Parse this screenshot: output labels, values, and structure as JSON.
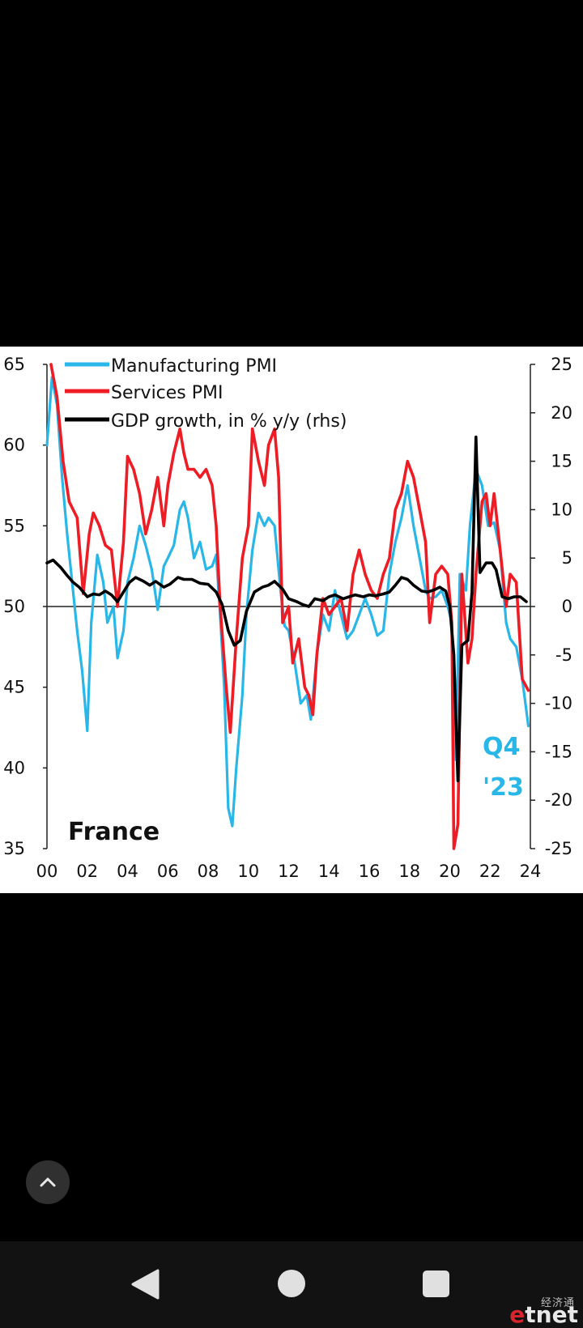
{
  "chart_data": {
    "type": "line",
    "country_label": "France",
    "annotation": {
      "line1": "Q4",
      "line2": "'23",
      "color": "#29b6e8"
    },
    "x_ticks": [
      "00",
      "02",
      "04",
      "06",
      "08",
      "10",
      "12",
      "14",
      "16",
      "18",
      "20",
      "22",
      "24"
    ],
    "xlim": [
      2000,
      2024
    ],
    "y_left": {
      "ticks": [
        "65",
        "60",
        "55",
        "50",
        "45",
        "40",
        "35"
      ],
      "ylim": [
        35,
        65
      ]
    },
    "y_right": {
      "ticks": [
        "25",
        "20",
        "15",
        "10",
        "5",
        "0",
        "-5",
        "-10",
        "-15",
        "-20",
        "-25"
      ],
      "ylim": [
        -25,
        25
      ]
    },
    "legend_placement": "top-left",
    "grid": false,
    "series": [
      {
        "name": "Manufacturing PMI",
        "axis": "left",
        "color": "#29b6e8",
        "points": [
          [
            2000.0,
            60
          ],
          [
            2000.25,
            64.2
          ],
          [
            2000.5,
            62.5
          ],
          [
            2000.75,
            58
          ],
          [
            2001.0,
            54.5
          ],
          [
            2001.25,
            51.5
          ],
          [
            2001.5,
            48.5
          ],
          [
            2001.75,
            46
          ],
          [
            2002.0,
            42.3
          ],
          [
            2002.2,
            49
          ],
          [
            2002.5,
            53.2
          ],
          [
            2002.8,
            51.5
          ],
          [
            2003.0,
            49
          ],
          [
            2003.3,
            50
          ],
          [
            2003.5,
            46.8
          ],
          [
            2003.8,
            48.5
          ],
          [
            2004.0,
            51.5
          ],
          [
            2004.3,
            53
          ],
          [
            2004.6,
            55
          ],
          [
            2004.9,
            53.8
          ],
          [
            2005.2,
            52.3
          ],
          [
            2005.5,
            49.8
          ],
          [
            2005.8,
            52.5
          ],
          [
            2006.0,
            53
          ],
          [
            2006.3,
            53.8
          ],
          [
            2006.6,
            56
          ],
          [
            2006.8,
            56.5
          ],
          [
            2007.0,
            55.5
          ],
          [
            2007.3,
            53
          ],
          [
            2007.6,
            54
          ],
          [
            2007.9,
            52.3
          ],
          [
            2008.2,
            52.5
          ],
          [
            2008.4,
            53.2
          ],
          [
            2008.6,
            49.5
          ],
          [
            2008.8,
            45
          ],
          [
            2009.0,
            37.5
          ],
          [
            2009.2,
            36.4
          ],
          [
            2009.4,
            40
          ],
          [
            2009.7,
            44.5
          ],
          [
            2009.9,
            49.5
          ],
          [
            2010.2,
            53.5
          ],
          [
            2010.5,
            55.8
          ],
          [
            2010.8,
            55
          ],
          [
            2011.0,
            55.5
          ],
          [
            2011.3,
            55
          ],
          [
            2011.6,
            51
          ],
          [
            2011.8,
            48.8
          ],
          [
            2012.0,
            48.5
          ],
          [
            2012.3,
            46.5
          ],
          [
            2012.6,
            44
          ],
          [
            2012.9,
            44.5
          ],
          [
            2013.1,
            43
          ],
          [
            2013.4,
            47
          ],
          [
            2013.7,
            49.5
          ],
          [
            2014.0,
            48.5
          ],
          [
            2014.3,
            51
          ],
          [
            2014.6,
            49.5
          ],
          [
            2014.9,
            48
          ],
          [
            2015.2,
            48.5
          ],
          [
            2015.5,
            49.5
          ],
          [
            2015.8,
            50.5
          ],
          [
            2016.1,
            49.5
          ],
          [
            2016.4,
            48.2
          ],
          [
            2016.7,
            48.5
          ],
          [
            2017.0,
            52
          ],
          [
            2017.3,
            54
          ],
          [
            2017.6,
            55.5
          ],
          [
            2017.9,
            57.5
          ],
          [
            2018.2,
            55
          ],
          [
            2018.5,
            53
          ],
          [
            2018.8,
            51
          ],
          [
            2019.0,
            50.5
          ],
          [
            2019.3,
            50.6
          ],
          [
            2019.6,
            51
          ],
          [
            2019.9,
            50
          ],
          [
            2020.1,
            49
          ],
          [
            2020.2,
            43
          ],
          [
            2020.3,
            40.5
          ],
          [
            2020.5,
            52
          ],
          [
            2020.8,
            51
          ],
          [
            2021.0,
            55
          ],
          [
            2021.3,
            58.5
          ],
          [
            2021.6,
            57.5
          ],
          [
            2021.9,
            55
          ],
          [
            2022.2,
            55.2
          ],
          [
            2022.5,
            53.5
          ],
          [
            2022.8,
            49
          ],
          [
            2023.0,
            48
          ],
          [
            2023.3,
            47.5
          ],
          [
            2023.6,
            45.5
          ],
          [
            2023.9,
            42.6
          ]
        ]
      },
      {
        "name": "Services PMI",
        "axis": "left",
        "color": "#ee1c24",
        "points": [
          [
            2000.2,
            65
          ],
          [
            2000.5,
            63
          ],
          [
            2000.8,
            59
          ],
          [
            2001.1,
            56.5
          ],
          [
            2001.5,
            55.5
          ],
          [
            2001.8,
            50.8
          ],
          [
            2002.1,
            54.5
          ],
          [
            2002.3,
            55.8
          ],
          [
            2002.6,
            55
          ],
          [
            2002.9,
            53.8
          ],
          [
            2003.2,
            53.5
          ],
          [
            2003.5,
            50
          ],
          [
            2003.8,
            54
          ],
          [
            2004.0,
            59.3
          ],
          [
            2004.3,
            58.5
          ],
          [
            2004.6,
            57
          ],
          [
            2004.9,
            54.5
          ],
          [
            2005.2,
            56
          ],
          [
            2005.5,
            58
          ],
          [
            2005.8,
            55
          ],
          [
            2006.0,
            57.5
          ],
          [
            2006.3,
            59.5
          ],
          [
            2006.6,
            61
          ],
          [
            2006.8,
            59.5
          ],
          [
            2007.0,
            58.5
          ],
          [
            2007.3,
            58.5
          ],
          [
            2007.6,
            58
          ],
          [
            2007.9,
            58.5
          ],
          [
            2008.2,
            57.5
          ],
          [
            2008.4,
            55
          ],
          [
            2008.6,
            50
          ],
          [
            2008.9,
            45
          ],
          [
            2009.1,
            42.2
          ],
          [
            2009.4,
            48
          ],
          [
            2009.7,
            53
          ],
          [
            2010.0,
            55
          ],
          [
            2010.2,
            61
          ],
          [
            2010.5,
            59
          ],
          [
            2010.8,
            57.5
          ],
          [
            2011.0,
            60
          ],
          [
            2011.3,
            61
          ],
          [
            2011.5,
            58
          ],
          [
            2011.7,
            49
          ],
          [
            2012.0,
            50
          ],
          [
            2012.2,
            46.5
          ],
          [
            2012.5,
            48
          ],
          [
            2012.8,
            45
          ],
          [
            2013.0,
            44.5
          ],
          [
            2013.2,
            43.3
          ],
          [
            2013.4,
            47
          ],
          [
            2013.7,
            50.5
          ],
          [
            2014.0,
            49.5
          ],
          [
            2014.3,
            50
          ],
          [
            2014.6,
            50.5
          ],
          [
            2014.9,
            48.5
          ],
          [
            2015.2,
            52
          ],
          [
            2015.5,
            53.5
          ],
          [
            2015.8,
            52
          ],
          [
            2016.1,
            51
          ],
          [
            2016.4,
            50.5
          ],
          [
            2016.7,
            52
          ],
          [
            2017.0,
            53
          ],
          [
            2017.3,
            56
          ],
          [
            2017.6,
            57
          ],
          [
            2017.9,
            59
          ],
          [
            2018.2,
            58
          ],
          [
            2018.5,
            56
          ],
          [
            2018.8,
            54
          ],
          [
            2019.0,
            49
          ],
          [
            2019.3,
            52
          ],
          [
            2019.6,
            52.5
          ],
          [
            2019.9,
            52
          ],
          [
            2020.1,
            49
          ],
          [
            2020.2,
            35
          ],
          [
            2020.4,
            36.5
          ],
          [
            2020.6,
            52
          ],
          [
            2020.9,
            46.5
          ],
          [
            2021.1,
            48
          ],
          [
            2021.3,
            52
          ],
          [
            2021.6,
            56.5
          ],
          [
            2021.8,
            57
          ],
          [
            2022.0,
            55
          ],
          [
            2022.2,
            57
          ],
          [
            2022.5,
            53.5
          ],
          [
            2022.8,
            50
          ],
          [
            2023.0,
            52
          ],
          [
            2023.3,
            51.5
          ],
          [
            2023.6,
            45.5
          ],
          [
            2023.9,
            44.8
          ]
        ]
      },
      {
        "name": "GDP growth, in % y/y (rhs)",
        "axis": "right",
        "color": "#000000",
        "points": [
          [
            2000.0,
            4.5
          ],
          [
            2000.3,
            4.8
          ],
          [
            2000.7,
            4
          ],
          [
            2001.0,
            3.2
          ],
          [
            2001.3,
            2.5
          ],
          [
            2001.6,
            2
          ],
          [
            2002.0,
            1
          ],
          [
            2002.3,
            1.3
          ],
          [
            2002.6,
            1.2
          ],
          [
            2002.9,
            1.6
          ],
          [
            2003.2,
            1.2
          ],
          [
            2003.5,
            0.5
          ],
          [
            2003.8,
            1.5
          ],
          [
            2004.1,
            2.5
          ],
          [
            2004.4,
            3
          ],
          [
            2004.8,
            2.6
          ],
          [
            2005.1,
            2.2
          ],
          [
            2005.4,
            2.6
          ],
          [
            2005.8,
            2
          ],
          [
            2006.1,
            2.3
          ],
          [
            2006.5,
            3
          ],
          [
            2006.8,
            2.8
          ],
          [
            2007.2,
            2.8
          ],
          [
            2007.6,
            2.4
          ],
          [
            2008.0,
            2.3
          ],
          [
            2008.4,
            1.5
          ],
          [
            2008.7,
            0.2
          ],
          [
            2009.0,
            -2.5
          ],
          [
            2009.3,
            -4
          ],
          [
            2009.6,
            -3.5
          ],
          [
            2009.9,
            -0.5
          ],
          [
            2010.3,
            1.5
          ],
          [
            2010.7,
            2
          ],
          [
            2011.0,
            2.2
          ],
          [
            2011.3,
            2.6
          ],
          [
            2011.7,
            1.8
          ],
          [
            2012.0,
            0.8
          ],
          [
            2012.4,
            0.5
          ],
          [
            2012.7,
            0.2
          ],
          [
            2013.0,
            0
          ],
          [
            2013.3,
            0.8
          ],
          [
            2013.7,
            0.6
          ],
          [
            2014.0,
            1
          ],
          [
            2014.3,
            1.2
          ],
          [
            2014.7,
            0.8
          ],
          [
            2015.0,
            1
          ],
          [
            2015.3,
            1.2
          ],
          [
            2015.7,
            1
          ],
          [
            2016.0,
            1.2
          ],
          [
            2016.3,
            1.1
          ],
          [
            2016.7,
            1.3
          ],
          [
            2017.0,
            1.5
          ],
          [
            2017.3,
            2.2
          ],
          [
            2017.6,
            3
          ],
          [
            2017.9,
            2.8
          ],
          [
            2018.2,
            2.2
          ],
          [
            2018.6,
            1.6
          ],
          [
            2018.9,
            1.5
          ],
          [
            2019.2,
            1.7
          ],
          [
            2019.5,
            2
          ],
          [
            2019.8,
            1.6
          ],
          [
            2020.0,
            0
          ],
          [
            2020.2,
            -5
          ],
          [
            2020.4,
            -18
          ],
          [
            2020.6,
            -4
          ],
          [
            2020.9,
            -3.5
          ],
          [
            2021.1,
            1.5
          ],
          [
            2021.3,
            17.5
          ],
          [
            2021.5,
            3.5
          ],
          [
            2021.8,
            4.5
          ],
          [
            2022.1,
            4.5
          ],
          [
            2022.3,
            3.8
          ],
          [
            2022.6,
            1
          ],
          [
            2022.9,
            0.8
          ],
          [
            2023.2,
            1
          ],
          [
            2023.5,
            1
          ],
          [
            2023.8,
            0.5
          ]
        ]
      }
    ]
  }
}
